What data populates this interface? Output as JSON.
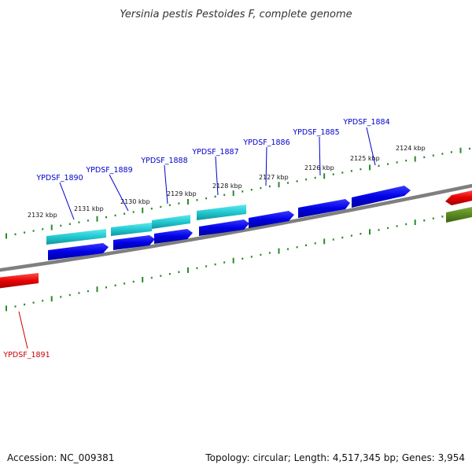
{
  "title": "Yersinia pestis Pestoides F, complete genome",
  "footer": {
    "accession": "Accession: NC_009381",
    "summary": "Topology: circular; Length: 4,517,345 bp; Genes: 3,954"
  },
  "colors": {
    "backbone": "#7f7f7f",
    "cds_forward": "#0000e6",
    "rna_forward": "#22c8d0",
    "cds_reverse": "#e60000",
    "other_reverse": "#5a8a20",
    "tick": "#2a8a2a",
    "forward_label": "#0000cc",
    "reverse_label": "#cc0000"
  },
  "kbp_labels": [
    "2132 kbp",
    "2131 kbp",
    "2130 kbp",
    "2129 kbp",
    "2128 kbp",
    "2127 kbp",
    "2126 kbp",
    "2125 kbp",
    "2124 kbp"
  ],
  "genes_forward": [
    "YPDSF_1890",
    "YPDSF_1889",
    "YPDSF_1888",
    "YPDSF_1887",
    "YPDSF_1886",
    "YPDSF_1885",
    "YPDSF_1884"
  ],
  "genes_reverse": [
    "YPDSF_1891"
  ]
}
